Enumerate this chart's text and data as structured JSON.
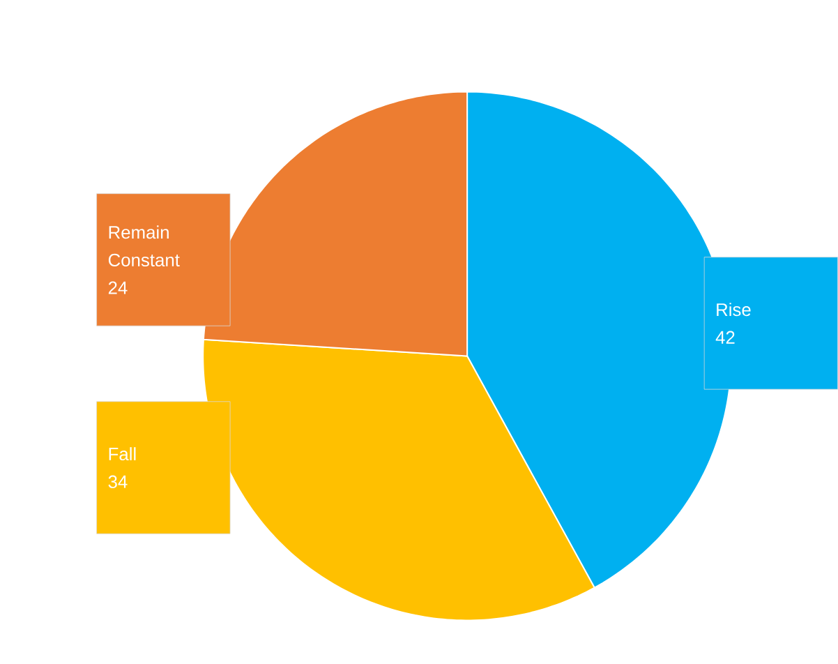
{
  "chart_data": {
    "type": "pie",
    "categories": [
      "Rise",
      "Fall",
      "Remain Constant"
    ],
    "values": [
      42,
      34,
      24
    ],
    "value_labels": [
      "42",
      "34",
      "24"
    ],
    "colors": [
      "#00b0f0",
      "#ffc000",
      "#ed7d31"
    ],
    "data_labels": true
  }
}
